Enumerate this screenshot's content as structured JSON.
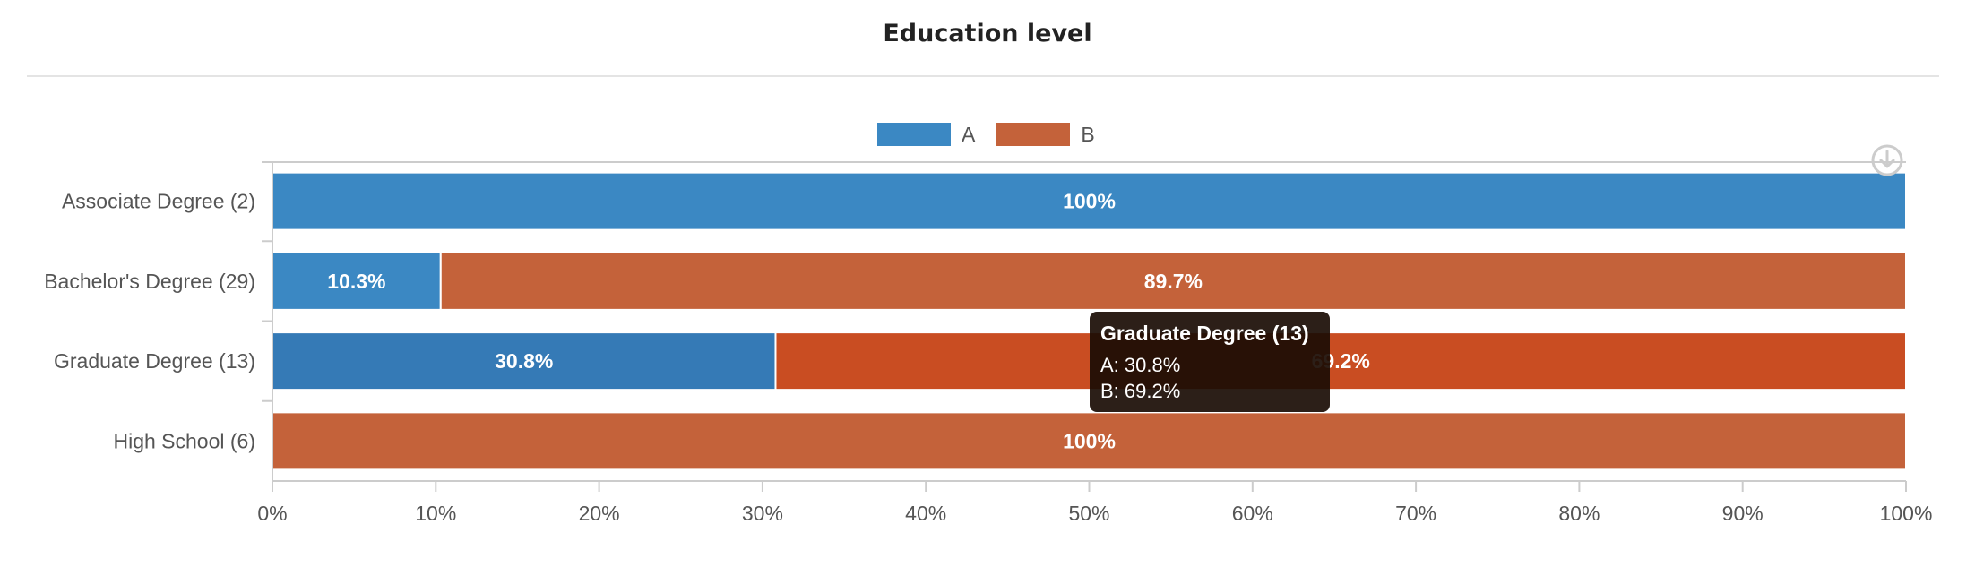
{
  "chart_data": {
    "type": "bar",
    "orientation": "horizontal",
    "stacked": true,
    "title": "Education level",
    "categories": [
      "Associate Degree (2)",
      "Bachelor's Degree (29)",
      "Graduate Degree (13)",
      "High School (6)"
    ],
    "series": [
      {
        "name": "A",
        "color": "#3b88c3",
        "values": [
          100,
          10.3,
          30.8,
          0
        ]
      },
      {
        "name": "B",
        "color": "#c4623a",
        "values": [
          0,
          89.7,
          69.2,
          100
        ]
      }
    ],
    "data_labels": [
      [
        "100%",
        "10.3%",
        "30.8%",
        ""
      ],
      [
        "",
        "89.7%",
        "69.2%",
        "100%"
      ]
    ],
    "highlight_colors": [
      "#357ab6",
      "#c94d22"
    ],
    "highlighted_category_index": 2,
    "xlim": [
      0,
      100
    ],
    "x_ticks": [
      "0%",
      "10%",
      "20%",
      "30%",
      "40%",
      "50%",
      "60%",
      "70%",
      "80%",
      "90%",
      "100%"
    ],
    "legend_position": "top-center",
    "grid": false
  },
  "tooltip": {
    "title": "Graduate Degree (13)",
    "line_a": "A: 30.8%",
    "line_b": "B: 69.2%"
  },
  "toolbar": {
    "download_icon": "download-icon"
  }
}
